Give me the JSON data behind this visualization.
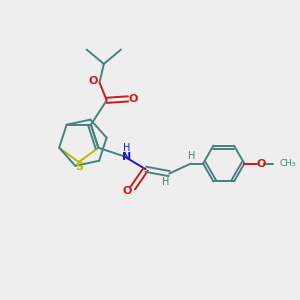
{
  "background_color": "#eeeeee",
  "bond_color": "#4a8080",
  "sulfur_color": "#b8b800",
  "nitrogen_color": "#1a1acc",
  "oxygen_color": "#cc1a1a",
  "figsize": [
    3.0,
    3.0
  ],
  "dpi": 100,
  "xlim": [
    0,
    10
  ],
  "ylim": [
    0,
    10
  ]
}
